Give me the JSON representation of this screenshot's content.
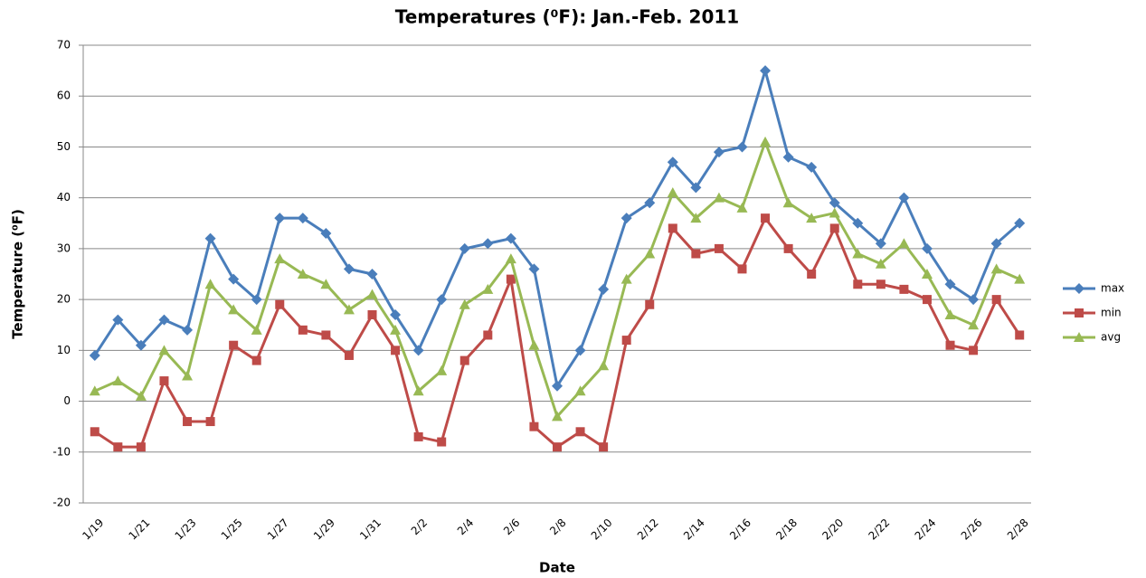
{
  "chart_data": {
    "type": "line",
    "title": "Temperatures (⁰F): Jan.-Feb. 2011",
    "x_label": "Date",
    "y_label": "Temperature (⁰F)",
    "categories": [
      "1/19",
      null,
      "1/21",
      null,
      "1/23",
      null,
      "1/25",
      null,
      "1/27",
      null,
      "1/29",
      null,
      "1/31",
      null,
      "2/2",
      null,
      "2/4",
      null,
      "2/6",
      null,
      "2/8",
      null,
      "2/10",
      null,
      "2/12",
      null,
      "2/14",
      null,
      "2/16",
      null,
      "2/18",
      null,
      "2/20",
      null,
      "2/22",
      null,
      "2/24",
      null,
      "2/26",
      null,
      "2/28"
    ],
    "series": [
      {
        "name": "max",
        "color": "#4a7ebb",
        "marker": "diamond",
        "values": [
          9,
          16,
          11,
          16,
          14,
          32,
          24,
          20,
          36,
          36,
          33,
          26,
          25,
          17,
          10,
          20,
          30,
          31,
          32,
          26,
          3,
          10,
          22,
          36,
          39,
          47,
          42,
          49,
          50,
          65,
          48,
          46,
          39,
          35,
          31,
          40,
          30,
          23,
          20,
          31,
          35
        ]
      },
      {
        "name": "min",
        "color": "#be4b48",
        "marker": "square",
        "values": [
          -6,
          -9,
          -9,
          4,
          -4,
          -4,
          11,
          8,
          19,
          14,
          13,
          9,
          17,
          10,
          -7,
          -8,
          8,
          13,
          24,
          -5,
          -9,
          -6,
          -9,
          12,
          19,
          34,
          29,
          30,
          26,
          36,
          30,
          25,
          34,
          23,
          23,
          22,
          20,
          11,
          10,
          20,
          13
        ]
      },
      {
        "name": "avg",
        "color": "#98b954",
        "marker": "triangle",
        "values": [
          2,
          4,
          1,
          10,
          5,
          23,
          18,
          14,
          28,
          25,
          23,
          18,
          21,
          14,
          2,
          6,
          19,
          22,
          28,
          11,
          -3,
          2,
          7,
          24,
          29,
          41,
          36,
          40,
          38,
          51,
          39,
          36,
          37,
          29,
          27,
          31,
          25,
          17,
          15,
          26,
          24
        ]
      }
    ],
    "ylim": [
      -20,
      70
    ],
    "yticks": [
      -20,
      -10,
      0,
      10,
      20,
      30,
      40,
      50,
      60,
      70
    ],
    "grid": true,
    "legend": "right"
  }
}
